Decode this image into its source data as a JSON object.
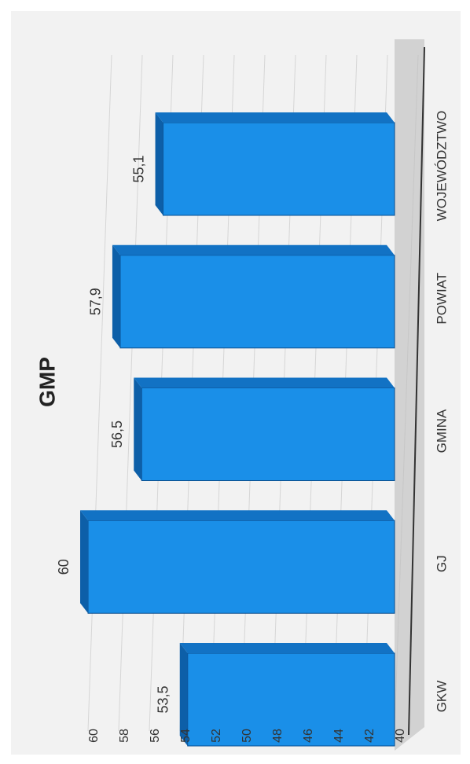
{
  "chart_data": {
    "type": "bar",
    "orientation": "rotated-90-clockwise",
    "title": "GMP",
    "xlabel": "",
    "ylabel": "",
    "categories": [
      "GKW",
      "GJ",
      "GMINA",
      "POWIAT",
      "WOJEWÓDZTWO"
    ],
    "values": [
      53.5,
      60,
      56.5,
      57.9,
      55.1
    ],
    "value_labels": [
      "53,5",
      "60",
      "56,5",
      "57,9",
      "55,1"
    ],
    "ylim": [
      40,
      60
    ],
    "yticks": [
      "40",
      "42",
      "44",
      "46",
      "48",
      "50",
      "52",
      "54",
      "56",
      "58",
      "60"
    ],
    "grid": true,
    "legend": "none",
    "style": "3d-box",
    "colors": {
      "bar_front": "#1a8fe8",
      "bar_top": "#0d5fa8",
      "bar_side": "#1272c4",
      "edge": "#0a4f8f",
      "floor": "#bdbdbd",
      "background": "#f2f2f2",
      "text": "#333333"
    }
  }
}
